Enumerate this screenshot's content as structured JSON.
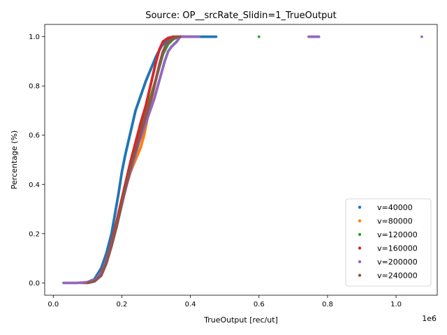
{
  "chart_data": {
    "type": "scatter",
    "title": "Source: OP__srcRate_Slidin=1_TrueOutput",
    "xlabel": "TrueOutput [rec/ut]",
    "ylabel": "Percentage (%)",
    "x_offset_label": "1e6",
    "xlim": [
      -0.025,
      1.12
    ],
    "ylim": [
      -0.05,
      1.05
    ],
    "x_ticks": [
      0.0,
      0.2,
      0.4,
      0.6,
      0.8,
      1.0
    ],
    "x_tick_labels": [
      "0.0",
      "0.2",
      "0.4",
      "0.6",
      "0.8",
      "1.0"
    ],
    "y_ticks": [
      0.0,
      0.2,
      0.4,
      0.6,
      0.8,
      1.0
    ],
    "y_tick_labels": [
      "0.0",
      "0.2",
      "0.4",
      "0.6",
      "0.8",
      "1.0"
    ],
    "grid": false,
    "legend_position": "lower-right",
    "series": [
      {
        "name": "v=40000",
        "color": "#1f77b4",
        "points": [
          [
            0.085,
            0.0
          ],
          [
            0.1,
            0.003
          ],
          [
            0.12,
            0.015
          ],
          [
            0.14,
            0.06
          ],
          [
            0.155,
            0.12
          ],
          [
            0.17,
            0.2
          ],
          [
            0.18,
            0.28
          ],
          [
            0.19,
            0.36
          ],
          [
            0.2,
            0.45
          ],
          [
            0.21,
            0.52
          ],
          [
            0.22,
            0.58
          ],
          [
            0.23,
            0.64
          ],
          [
            0.24,
            0.7
          ],
          [
            0.255,
            0.76
          ],
          [
            0.27,
            0.82
          ],
          [
            0.285,
            0.87
          ],
          [
            0.3,
            0.92
          ],
          [
            0.315,
            0.96
          ],
          [
            0.33,
            0.985
          ],
          [
            0.35,
            0.995
          ],
          [
            0.37,
            1.0
          ],
          [
            0.385,
            1.0
          ],
          [
            0.42,
            1.0
          ],
          [
            0.475,
            1.0
          ]
        ]
      },
      {
        "name": "v=80000",
        "color": "#ff7f0e",
        "points": [
          [
            0.08,
            0.0
          ],
          [
            0.11,
            0.003
          ],
          [
            0.13,
            0.02
          ],
          [
            0.15,
            0.07
          ],
          [
            0.165,
            0.14
          ],
          [
            0.18,
            0.22
          ],
          [
            0.195,
            0.3
          ],
          [
            0.21,
            0.38
          ],
          [
            0.225,
            0.45
          ],
          [
            0.24,
            0.5
          ],
          [
            0.255,
            0.55
          ],
          [
            0.265,
            0.6
          ],
          [
            0.275,
            0.67
          ],
          [
            0.285,
            0.74
          ],
          [
            0.295,
            0.8
          ],
          [
            0.305,
            0.86
          ],
          [
            0.315,
            0.91
          ],
          [
            0.325,
            0.95
          ],
          [
            0.34,
            0.98
          ],
          [
            0.355,
            0.995
          ],
          [
            0.37,
            1.0
          ],
          [
            0.39,
            1.0
          ]
        ]
      },
      {
        "name": "v=120000",
        "color": "#2ca02c",
        "points": [
          [
            0.095,
            0.0
          ],
          [
            0.115,
            0.005
          ],
          [
            0.135,
            0.025
          ],
          [
            0.15,
            0.07
          ],
          [
            0.165,
            0.14
          ],
          [
            0.18,
            0.22
          ],
          [
            0.195,
            0.31
          ],
          [
            0.21,
            0.4
          ],
          [
            0.225,
            0.48
          ],
          [
            0.24,
            0.55
          ],
          [
            0.255,
            0.62
          ],
          [
            0.27,
            0.69
          ],
          [
            0.285,
            0.76
          ],
          [
            0.3,
            0.83
          ],
          [
            0.31,
            0.88
          ],
          [
            0.32,
            0.93
          ],
          [
            0.335,
            0.97
          ],
          [
            0.35,
            0.99
          ],
          [
            0.365,
            1.0
          ],
          [
            0.6,
            1.0
          ]
        ]
      },
      {
        "name": "v=160000",
        "color": "#d62728",
        "points": [
          [
            0.09,
            0.0
          ],
          [
            0.11,
            0.004
          ],
          [
            0.13,
            0.02
          ],
          [
            0.15,
            0.07
          ],
          [
            0.165,
            0.14
          ],
          [
            0.18,
            0.22
          ],
          [
            0.195,
            0.31
          ],
          [
            0.21,
            0.4
          ],
          [
            0.225,
            0.49
          ],
          [
            0.24,
            0.57
          ],
          [
            0.255,
            0.65
          ],
          [
            0.27,
            0.72
          ],
          [
            0.28,
            0.78
          ],
          [
            0.29,
            0.84
          ],
          [
            0.3,
            0.9
          ],
          [
            0.31,
            0.95
          ],
          [
            0.32,
            0.98
          ],
          [
            0.335,
            0.995
          ],
          [
            0.35,
            1.0
          ],
          [
            0.38,
            1.0
          ]
        ]
      },
      {
        "name": "v=200000",
        "color": "#9467bd",
        "points": [
          [
            0.03,
            0.0
          ],
          [
            0.07,
            0.0
          ],
          [
            0.1,
            0.003
          ],
          [
            0.125,
            0.015
          ],
          [
            0.145,
            0.05
          ],
          [
            0.16,
            0.11
          ],
          [
            0.175,
            0.18
          ],
          [
            0.19,
            0.26
          ],
          [
            0.205,
            0.35
          ],
          [
            0.22,
            0.43
          ],
          [
            0.235,
            0.5
          ],
          [
            0.25,
            0.57
          ],
          [
            0.265,
            0.63
          ],
          [
            0.28,
            0.69
          ],
          [
            0.295,
            0.75
          ],
          [
            0.305,
            0.8
          ],
          [
            0.315,
            0.85
          ],
          [
            0.325,
            0.9
          ],
          [
            0.335,
            0.94
          ],
          [
            0.345,
            0.96
          ],
          [
            0.36,
            0.98
          ],
          [
            0.37,
            1.0
          ],
          [
            0.4,
            1.0
          ],
          [
            0.425,
            1.0
          ],
          [
            0.745,
            1.0
          ],
          [
            0.775,
            1.0
          ],
          [
            1.075,
            1.0
          ]
        ]
      },
      {
        "name": "v=240000",
        "color": "#8c564b",
        "points": [
          [
            0.1,
            0.0
          ],
          [
            0.12,
            0.006
          ],
          [
            0.14,
            0.03
          ],
          [
            0.155,
            0.08
          ],
          [
            0.17,
            0.15
          ],
          [
            0.185,
            0.23
          ],
          [
            0.2,
            0.32
          ],
          [
            0.215,
            0.41
          ],
          [
            0.23,
            0.49
          ],
          [
            0.245,
            0.56
          ],
          [
            0.26,
            0.63
          ],
          [
            0.275,
            0.7
          ],
          [
            0.29,
            0.77
          ],
          [
            0.3,
            0.83
          ],
          [
            0.31,
            0.89
          ],
          [
            0.32,
            0.94
          ],
          [
            0.33,
            0.97
          ],
          [
            0.345,
            0.99
          ],
          [
            0.36,
            1.0
          ],
          [
            0.37,
            1.0
          ]
        ]
      }
    ]
  }
}
